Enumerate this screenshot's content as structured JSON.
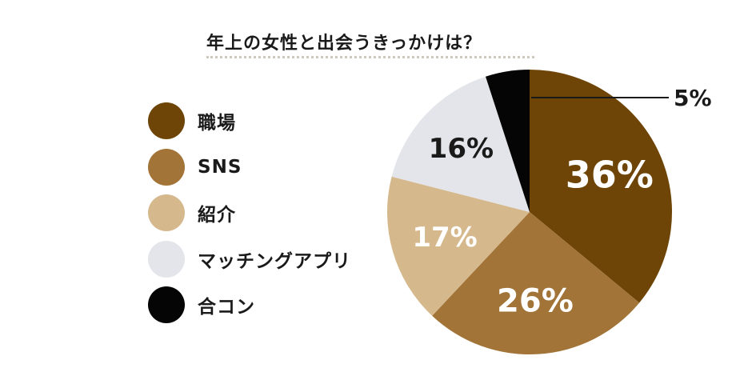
{
  "chart_data": {
    "type": "pie",
    "title": "年上の女性と出会うきっかけは？",
    "slices": [
      {
        "label": "職場",
        "value": 36,
        "display": "36%",
        "color": "#6e4506",
        "text_color": "#ffffff"
      },
      {
        "label": "SNS",
        "value": 26,
        "display": "26%",
        "color": "#a27437",
        "text_color": "#ffffff"
      },
      {
        "label": "紹介",
        "value": 17,
        "display": "17%",
        "color": "#d6b88d",
        "text_color": "#ffffff"
      },
      {
        "label": "マッチングアプリ",
        "value": 16,
        "display": "16%",
        "color": "#e3e5ea",
        "text_color": "#1a1a1a"
      },
      {
        "label": "合コン",
        "value": 5,
        "display": "5%",
        "color": "#050505",
        "text_color": "#1a1a1a"
      }
    ],
    "legend_position": "left"
  }
}
